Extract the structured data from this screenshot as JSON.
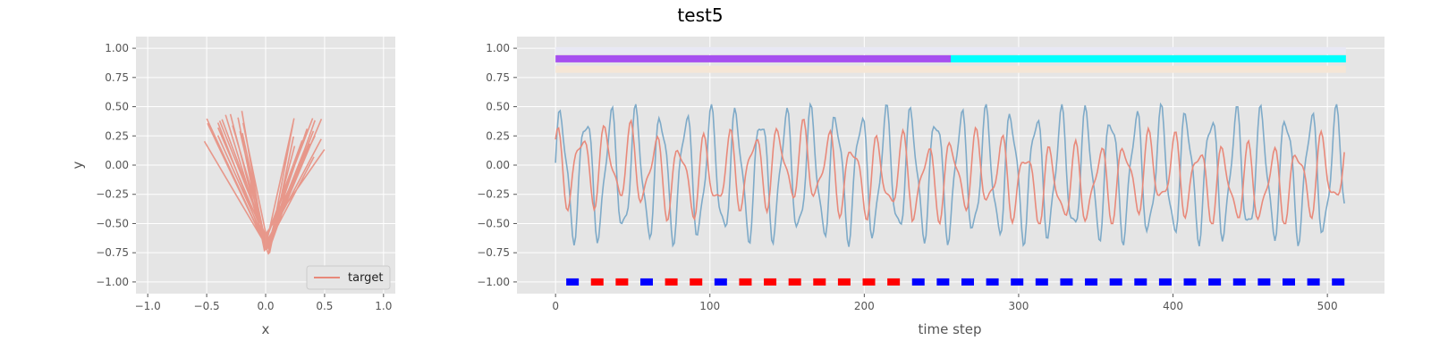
{
  "title": "test5",
  "colors": {
    "axes_bg": "#e5e5e5",
    "grid": "#ffffff",
    "target": "#e8897a",
    "signal": "#7eaac8",
    "band_purple": "#a64ff0",
    "band_cyan": "#00ffff",
    "band_top": "#e8e8f4",
    "band_bottom": "#f5e6d6",
    "marker_red": "#ff0000",
    "marker_blue": "#0000ff"
  },
  "chart_data": [
    {
      "type": "line",
      "title": "",
      "xlabel": "x",
      "ylabel": "y",
      "xlim": [
        -1.1,
        1.1
      ],
      "ylim": [
        -1.1,
        1.1
      ],
      "xticks": [
        "−1.0",
        "−0.5",
        "0.0",
        "0.5",
        "1.0"
      ],
      "yticks": [
        "−1.00",
        "−0.75",
        "−0.50",
        "−0.25",
        "0.00",
        "0.25",
        "0.50",
        "0.75",
        "1.00"
      ],
      "grid": true,
      "legend": {
        "position": "lower-right",
        "entries": [
          "target"
        ]
      },
      "series": [
        {
          "name": "target",
          "color": "#e8897a",
          "description_points": [
            [
              -0.52,
              0.5
            ],
            [
              -0.3,
              0.0
            ],
            [
              -0.05,
              -0.6
            ],
            [
              0.0,
              -0.78
            ],
            [
              0.05,
              -0.6
            ],
            [
              0.3,
              0.05
            ],
            [
              0.45,
              0.42
            ]
          ]
        }
      ]
    },
    {
      "type": "line",
      "title": "",
      "xlabel": "time step",
      "ylabel": "",
      "xlim": [
        -25,
        537
      ],
      "ylim": [
        -1.1,
        1.1
      ],
      "xticks": [
        "0",
        "100",
        "200",
        "300",
        "400",
        "500"
      ],
      "yticks": [
        "−1.00",
        "−0.75",
        "−0.50",
        "−0.25",
        "0.00",
        "0.25",
        "0.50",
        "0.75",
        "1.00"
      ],
      "grid": true,
      "n_steps": 512,
      "bands": [
        {
          "y": 0.98,
          "x_range": [
            0,
            512
          ],
          "color": "#e8e8f4"
        },
        {
          "y": 0.91,
          "x_range": [
            0,
            256
          ],
          "color": "#a64ff0"
        },
        {
          "y": 0.91,
          "x_range": [
            256,
            512
          ],
          "color": "#00ffff"
        },
        {
          "y": 0.82,
          "x_range": [
            0,
            512
          ],
          "color": "#f5e6d6"
        }
      ],
      "markers": {
        "y": -1.0,
        "red_centers": [
          27,
          43,
          75,
          91,
          123,
          139,
          155,
          171,
          187,
          203,
          219
        ],
        "blue_centers": [
          11,
          59,
          107,
          235,
          251,
          267,
          283,
          299,
          315,
          331,
          347,
          363,
          379,
          395,
          411,
          427,
          443,
          459,
          475,
          491,
          507
        ]
      },
      "series": [
        {
          "name": "",
          "color": "#e8897a",
          "description": "slow oscillation ~+0.4 to -0.45"
        },
        {
          "name": "",
          "color": "#7eaac8",
          "description": "fast oscillation ~+0.45 to -0.78"
        }
      ]
    }
  ]
}
